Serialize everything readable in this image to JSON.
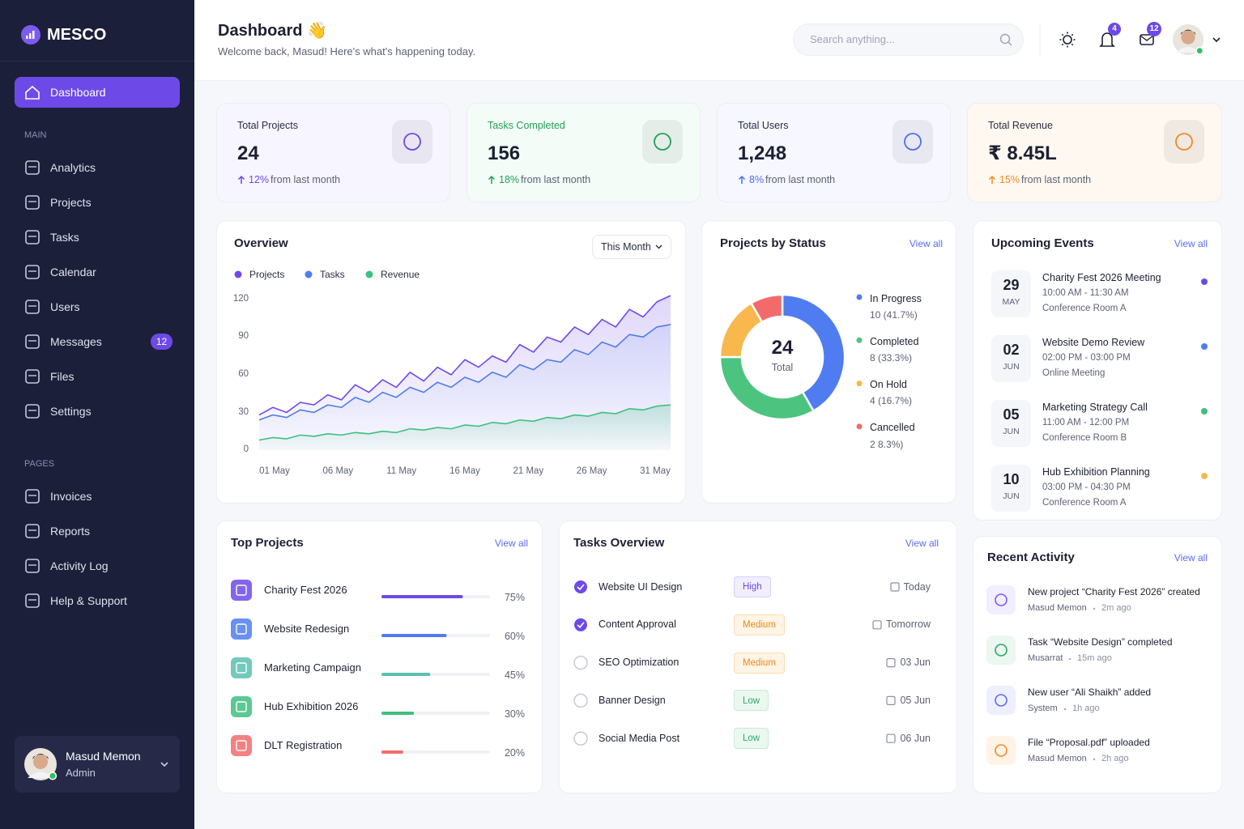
{
  "brand": "MESCO",
  "nav": {
    "primary": {
      "label": "Dashboard"
    },
    "main_heading": "MAIN",
    "main": [
      {
        "label": "Analytics"
      },
      {
        "label": "Projects"
      },
      {
        "label": "Tasks"
      },
      {
        "label": "Calendar"
      },
      {
        "label": "Users"
      },
      {
        "label": "Messages",
        "badge": 12
      },
      {
        "label": "Files"
      },
      {
        "label": "Settings"
      }
    ],
    "pages_heading": "PAGES",
    "pages": [
      {
        "label": "Invoices"
      },
      {
        "label": "Reports"
      },
      {
        "label": "Activity Log"
      },
      {
        "label": "Help & Support"
      }
    ]
  },
  "user": {
    "name": "Masud Memon",
    "role": "Admin"
  },
  "header": {
    "title": "Dashboard 👋",
    "subtitle": "Welcome back, Masud! Here's what's happening today.",
    "search_placeholder": "Search anything...",
    "notifications": 4,
    "messages": 12
  },
  "stats": [
    {
      "label": "Total Projects",
      "value": 24,
      "change": "12%",
      "change_text": "from last month",
      "color": "#6d4ae8",
      "tint": "#f7f5ff"
    },
    {
      "label": "Tasks Completed",
      "value": 156,
      "change": "18%",
      "change_text": "from last month",
      "color": "#22a05b",
      "tint": "#f3fcf6"
    },
    {
      "label": "Total Users",
      "value": "1,248",
      "change": "8%",
      "change_text": "from last month",
      "color": "#4f6ef0",
      "tint": "#f6f7ff"
    },
    {
      "label": "Total Revenue",
      "value": "₹ 8.45L",
      "change": "15%",
      "change_text": "from last month",
      "color": "#f08a24",
      "tint": "#fff8f0"
    }
  ],
  "overview": {
    "type": "line",
    "title": "Overview",
    "period": "This Month",
    "categories": [
      "01 May",
      null,
      null,
      null,
      null,
      "06 May",
      null,
      null,
      null,
      null,
      "11 May",
      null,
      null,
      null,
      null,
      "16 May",
      null,
      null,
      null,
      null,
      "21 May",
      null,
      null,
      null,
      null,
      "26 May",
      null,
      null,
      null,
      null,
      "31 May"
    ],
    "series": [
      {
        "name": "Projects",
        "color": "#6d4ae8",
        "values": [
          28,
          34,
          30,
          38,
          36,
          44,
          40,
          52,
          46,
          56,
          50,
          62,
          55,
          66,
          60,
          72,
          66,
          75,
          70,
          84,
          78,
          90,
          86,
          98,
          92,
          104,
          98,
          112,
          106,
          118,
          123
        ]
      },
      {
        "name": "Tasks",
        "color": "#4f7cf0",
        "values": [
          24,
          28,
          26,
          32,
          30,
          36,
          34,
          42,
          38,
          46,
          42,
          50,
          46,
          54,
          50,
          58,
          54,
          62,
          58,
          68,
          64,
          72,
          70,
          80,
          76,
          86,
          82,
          92,
          90,
          98,
          100
        ]
      },
      {
        "name": "Revenue",
        "color": "#3fbf7f",
        "values": [
          8,
          10,
          9,
          12,
          11,
          13,
          12,
          14,
          13,
          15,
          14,
          17,
          16,
          18,
          17,
          20,
          19,
          22,
          21,
          24,
          23,
          26,
          25,
          28,
          27,
          30,
          29,
          33,
          32,
          35,
          36
        ]
      }
    ],
    "ylim": [
      0,
      125
    ],
    "yticks": [
      0,
      30,
      60,
      90,
      120
    ]
  },
  "status": {
    "type": "pie",
    "title": "Projects by Status",
    "view_all": "View all",
    "total": 24,
    "total_label": "Total",
    "segments": [
      {
        "name": "In Progress",
        "color": "#4f7cf0",
        "value": 10,
        "label": "10 (41.7%)"
      },
      {
        "name": "Completed",
        "color": "#4cc47f",
        "value": 8,
        "label": "8 (33.3%)"
      },
      {
        "name": "On Hold",
        "color": "#f8b84e",
        "value": 4,
        "label": "4 (16.7%)"
      },
      {
        "name": "Cancelled",
        "color": "#f26b6b",
        "value": 2,
        "label": "2 8.3%)"
      }
    ]
  },
  "events": {
    "title": "Upcoming Events",
    "view_all": "View all",
    "items": [
      {
        "day": "29",
        "month": "MAY",
        "title": "Charity Fest 2026 Meeting",
        "time": "10:00 AM - 11:30 AM",
        "location": "Conference Room A",
        "color": "#6d4ae8"
      },
      {
        "day": "02",
        "month": "JUN",
        "title": "Website Demo Review",
        "time": "02:00 PM - 03:00 PM",
        "location": "Online Meeting",
        "color": "#4f7cf0"
      },
      {
        "day": "05",
        "month": "JUN",
        "title": "Marketing Strategy Call",
        "time": "11:00 AM - 12:00 PM",
        "location": "Conference Room B",
        "color": "#3fbf7f"
      },
      {
        "day": "10",
        "month": "JUN",
        "title": "Hub Exhibition Planning",
        "time": "03:00 PM - 04:30 PM",
        "location": "Conference Room A",
        "color": "#f8b84e"
      }
    ]
  },
  "top_projects": {
    "title": "Top Projects",
    "view_all": "View all",
    "items": [
      {
        "name": "Charity Fest 2026",
        "progress": 75,
        "progress_label": "75%",
        "color": "#6d4ae8"
      },
      {
        "name": "Website Redesign",
        "progress": 60,
        "progress_label": "60%",
        "color": "#4f7cf0"
      },
      {
        "name": "Marketing Campaign",
        "progress": 45,
        "progress_label": "45%",
        "color": "#5bbfb0"
      },
      {
        "name": "Hub Exhibition 2026",
        "progress": 30,
        "progress_label": "30%",
        "color": "#3fbf7f"
      },
      {
        "name": "DLT Registration",
        "progress": 20,
        "progress_label": "20%",
        "color": "#f26b6b"
      }
    ]
  },
  "tasks": {
    "title": "Tasks Overview",
    "view_all": "View all",
    "items": [
      {
        "name": "Website UI Design",
        "done": true,
        "priority": "High",
        "due": "Today"
      },
      {
        "name": "Content Approval",
        "done": true,
        "priority": "Medium",
        "due": "Tomorrow"
      },
      {
        "name": "SEO Optimization",
        "done": false,
        "priority": "Medium",
        "due": "03 Jun"
      },
      {
        "name": "Banner Design",
        "done": false,
        "priority": "Low",
        "due": "05 Jun"
      },
      {
        "name": "Social Media Post",
        "done": false,
        "priority": "Low",
        "due": "06 Jun"
      }
    ]
  },
  "activity": {
    "title": "Recent Activity",
    "view_all": "View all",
    "items": [
      {
        "text": "New project “Charity Fest 2026” created",
        "who": "Masud Memon",
        "when": "2m ago",
        "color": "#7c5cf0",
        "tint": "#f1eeff"
      },
      {
        "text": "Task “Website Design” completed",
        "who": "Musarrat",
        "when": "15m ago",
        "color": "#2fa866",
        "tint": "#eaf8ef"
      },
      {
        "text": "New user “Ali Shaikh” added",
        "who": "System",
        "when": "1h ago",
        "color": "#5b6cf0",
        "tint": "#eef0ff"
      },
      {
        "text": "File “Proposal.pdf” uploaded",
        "who": "Masud Memon",
        "when": "2h ago",
        "color": "#f08a24",
        "tint": "#fff3e6"
      }
    ]
  }
}
